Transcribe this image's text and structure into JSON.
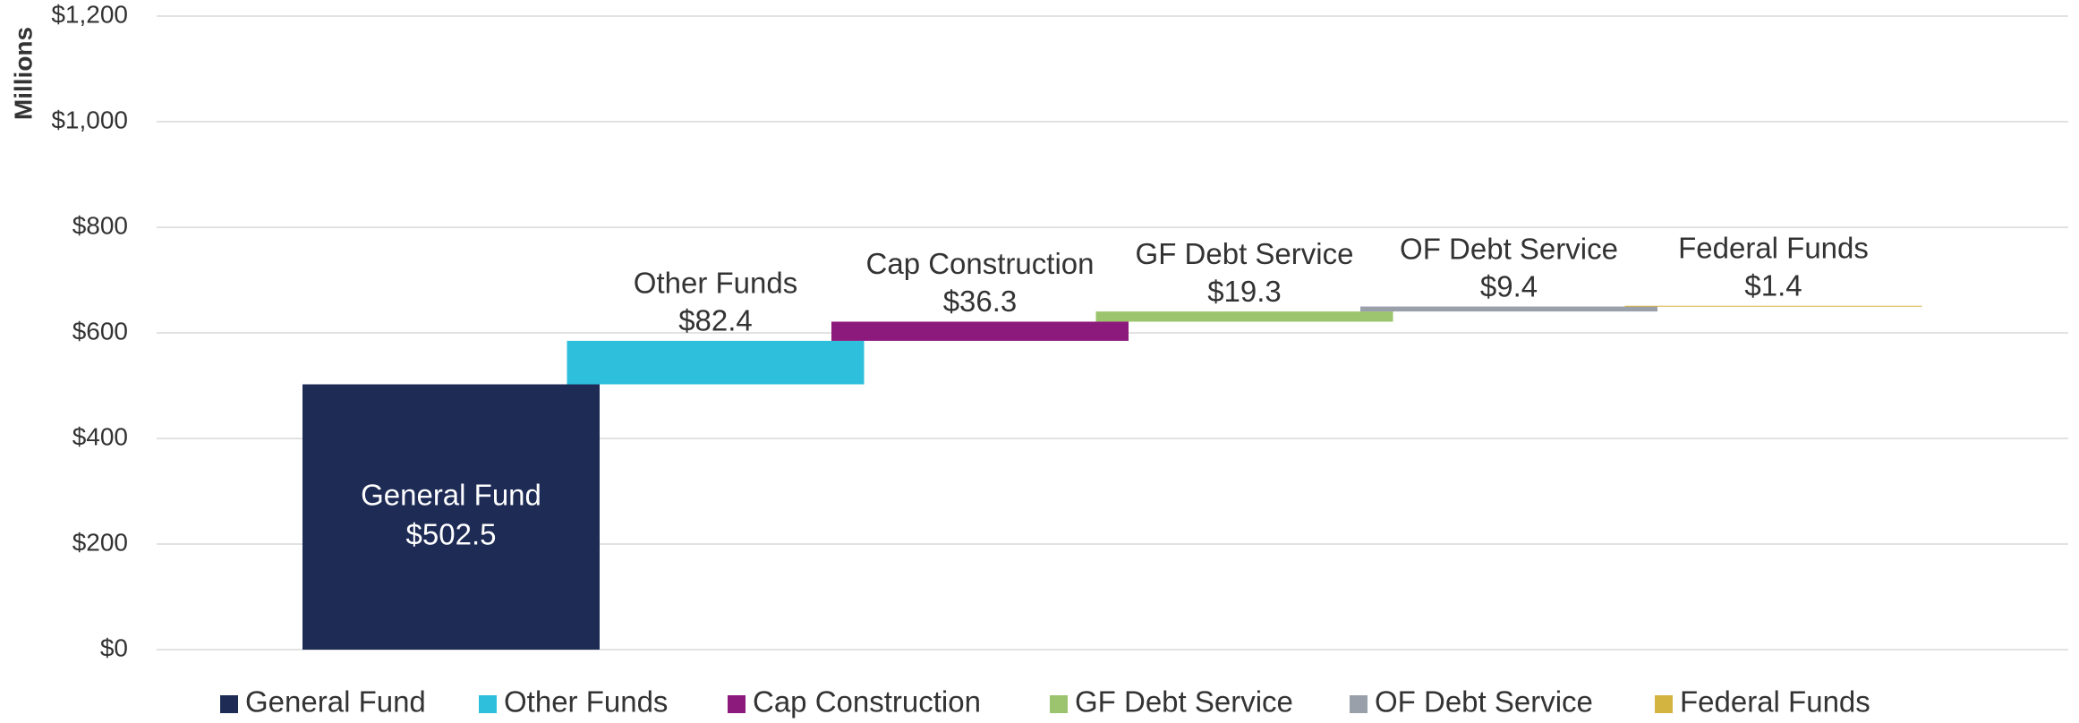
{
  "chart_data": {
    "type": "waterfall",
    "y_label": "Millions",
    "series": [
      {
        "name": "General Fund",
        "color": "#1d2b55",
        "values": [
          502.5
        ],
        "value_labels": [
          "$502.5"
        ]
      },
      {
        "name": "Other Funds",
        "color": "#2dbfdb",
        "values": [
          82.4
        ],
        "value_labels": [
          "$82.4"
        ]
      },
      {
        "name": "Cap Construction",
        "color": "#8c1a7c",
        "values": [
          36.3
        ],
        "value_labels": [
          "$36.3"
        ]
      },
      {
        "name": "GF Debt Service",
        "color": "#9cc46e",
        "values": [
          19.3
        ],
        "value_labels": [
          "$19.3"
        ]
      },
      {
        "name": "OF Debt Service",
        "color": "#9aa0aa",
        "values": [
          9.4
        ],
        "value_labels": [
          "$9.4"
        ]
      },
      {
        "name": "Federal Funds",
        "color": "#d4b440",
        "values": [
          1.4
        ],
        "value_labels": [
          "$1.4"
        ]
      }
    ],
    "ylim": [
      0,
      1200
    ],
    "yticks": [
      {
        "value": 0,
        "label": "$0"
      },
      {
        "value": 200,
        "label": "$200"
      },
      {
        "value": 400,
        "label": "$400"
      },
      {
        "value": 600,
        "label": "$600"
      },
      {
        "value": 800,
        "label": "$800"
      },
      {
        "value": 1000,
        "label": "$1,000"
      },
      {
        "value": 1200,
        "label": "$1,200"
      }
    ],
    "grid": true,
    "legend": "bottom"
  }
}
